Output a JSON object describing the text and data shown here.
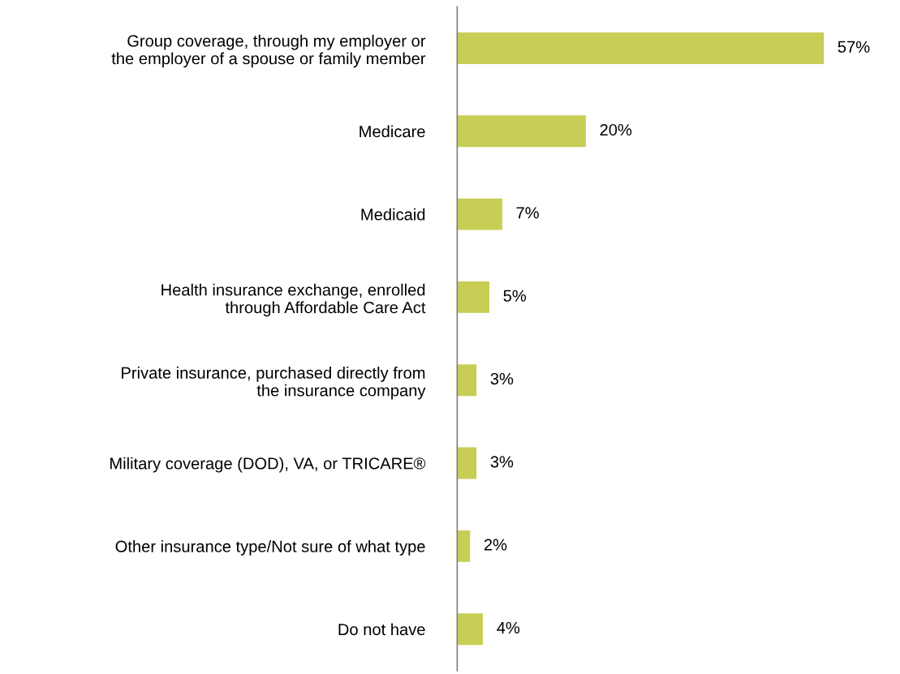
{
  "chart_data": {
    "type": "bar",
    "orientation": "horizontal",
    "categories": [
      "Group coverage, through my employer or\nthe employer of a spouse or family member",
      "Medicare",
      "Medicaid",
      "Health insurance exchange, enrolled\nthrough Affordable Care Act",
      "Private insurance, purchased directly from\nthe insurance company",
      "Military coverage (DOD), VA, or TRICARE®",
      "Other insurance type/Not sure of what type",
      "Do not have"
    ],
    "values": [
      57,
      20,
      7,
      5,
      3,
      3,
      2,
      4
    ],
    "value_labels": [
      "57%",
      "20%",
      "7%",
      "5%",
      "3%",
      "3%",
      "2%",
      "4%"
    ],
    "color": "#c8cd55",
    "grid": false,
    "legend": false
  }
}
